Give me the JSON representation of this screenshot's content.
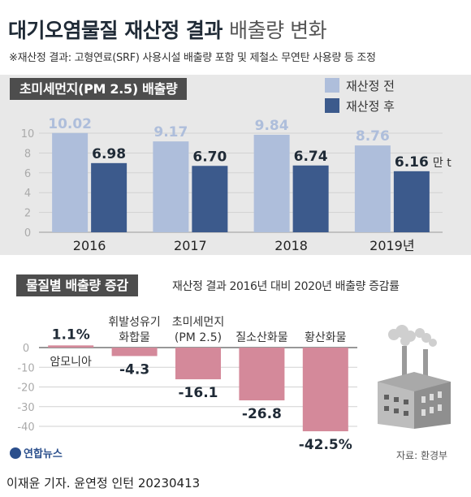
{
  "header": {
    "title_bold": "대기오염물질 재산정 결과",
    "title_light": "배출량 변화",
    "note": "※재산정 결과: 고형연료(SRF) 사용시설 배출량 포함 및 제철소 무연탄 사용량 등 조정"
  },
  "colors": {
    "before": "#aebedb",
    "after": "#3c5a8c",
    "change": "#d4899a",
    "band": "#e8e8e8"
  },
  "chart_data": [
    {
      "type": "bar",
      "title": "초미세먼지(PM 2.5) 배출량",
      "categories": [
        "2016",
        "2017",
        "2018",
        "2019년"
      ],
      "series": [
        {
          "name": "재산정 전",
          "values": [
            10.02,
            9.17,
            9.84,
            8.76
          ],
          "labels": [
            "10.02",
            "9.17",
            "9.84",
            "8.76"
          ]
        },
        {
          "name": "재산정 후",
          "values": [
            6.98,
            6.7,
            6.74,
            6.16
          ],
          "labels": [
            "6.98",
            "6.70",
            "6.74",
            "6.16"
          ]
        }
      ],
      "unit": "만 t",
      "ylim": [
        0,
        10
      ],
      "yticks": [
        "0",
        "2",
        "4",
        "6",
        "8",
        "10"
      ],
      "grid": true,
      "legend": "top-right"
    },
    {
      "type": "bar",
      "title": "물질별 배출량 증감",
      "subtitle": "재산정 결과 2016년 대비 2020년 배출량 증감률",
      "categories": [
        "암모니아",
        "휘발성유기\n화합물",
        "초미세먼지\n(PM 2.5)",
        "질소산화물",
        "황산화물"
      ],
      "values": [
        1.1,
        -4.3,
        -16.1,
        -26.8,
        -42.5
      ],
      "labels": [
        "1.1%",
        "-4.3",
        "-16.1",
        "-26.8",
        "-42.5%"
      ],
      "ylim": [
        -40,
        0
      ],
      "yticks": [
        "0",
        "-10",
        "-20",
        "-30",
        "-40"
      ],
      "grid": true
    }
  ],
  "footer": {
    "logo": "연합뉴스",
    "source": "자료: 환경부",
    "credit": "이재윤 기자. 윤연정 인턴  20230413"
  }
}
